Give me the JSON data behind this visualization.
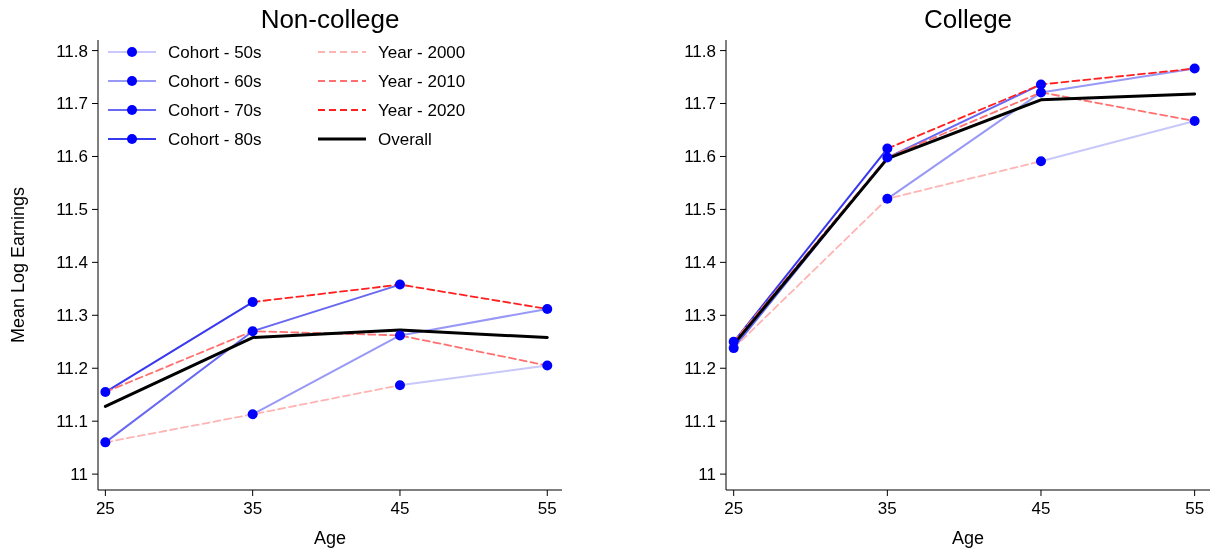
{
  "chart_data": [
    {
      "type": "line",
      "title": "Non-college",
      "xlabel": "Age",
      "ylabel": "Mean Log Earnings",
      "x": [
        25,
        35,
        45,
        55
      ],
      "xlim": [
        24.5,
        56
      ],
      "xticks": [
        25,
        35,
        45,
        55
      ],
      "ylim": [
        10.97,
        11.82
      ],
      "yticks": [
        11,
        11.1,
        11.2,
        11.3,
        11.4,
        11.5,
        11.6,
        11.7,
        11.8
      ],
      "legend": "top left",
      "series": [
        {
          "name": "Cohort - 50s",
          "color": "#c8c8fa",
          "marker": "circle",
          "line_style": "solid",
          "values": [
            null,
            null,
            11.168,
            11.205
          ]
        },
        {
          "name": "Cohort - 60s",
          "color": "#9898f6",
          "marker": "circle",
          "line_style": "solid",
          "values": [
            null,
            11.113,
            11.262,
            11.312
          ]
        },
        {
          "name": "Cohort - 70s",
          "color": "#6868f2",
          "marker": "circle",
          "line_style": "solid",
          "values": [
            11.06,
            11.27,
            11.358,
            null
          ]
        },
        {
          "name": "Cohort - 80s",
          "color": "#3838ee",
          "marker": "circle",
          "line_style": "solid",
          "values": [
            11.155,
            11.325,
            null,
            null
          ]
        },
        {
          "name": "Year - 2000",
          "color": "#ffb4b4",
          "marker": "none",
          "line_style": "dashed",
          "values": [
            11.06,
            11.113,
            11.168,
            null
          ]
        },
        {
          "name": "Year - 2010",
          "color": "#ff7070",
          "marker": "none",
          "line_style": "dashed",
          "values": [
            11.155,
            11.27,
            11.262,
            11.205
          ]
        },
        {
          "name": "Year - 2020",
          "color": "#ff2020",
          "marker": "none",
          "line_style": "dashed",
          "values": [
            null,
            11.325,
            11.358,
            11.312
          ]
        },
        {
          "name": "Overall",
          "color": "#000000",
          "marker": "none",
          "line_style": "solid",
          "values": [
            11.128,
            11.258,
            11.272,
            11.258
          ]
        }
      ]
    },
    {
      "type": "line",
      "title": "College",
      "xlabel": "Age",
      "x": [
        25,
        35,
        45,
        55
      ],
      "xlim": [
        24.5,
        56
      ],
      "xticks": [
        25,
        35,
        45,
        55
      ],
      "ylim": [
        10.97,
        11.82
      ],
      "yticks": [
        11,
        11.1,
        11.2,
        11.3,
        11.4,
        11.5,
        11.6,
        11.7,
        11.8
      ],
      "legend": false,
      "series": [
        {
          "color": "#c8c8fa",
          "marker": "circle",
          "line_style": "solid",
          "values": [
            null,
            null,
            11.591,
            11.667
          ]
        },
        {
          "color": "#9898f6",
          "marker": "circle",
          "line_style": "solid",
          "values": [
            null,
            11.52,
            11.721,
            11.766
          ]
        },
        {
          "color": "#6868f2",
          "marker": "circle",
          "line_style": "solid",
          "values": [
            11.238,
            11.598,
            11.736,
            null
          ]
        },
        {
          "color": "#3838ee",
          "marker": "circle",
          "line_style": "solid",
          "values": [
            11.25,
            11.615,
            null,
            null
          ]
        },
        {
          "color": "#ffb4b4",
          "marker": "none",
          "line_style": "dashed",
          "values": [
            11.238,
            11.52,
            11.591,
            null
          ]
        },
        {
          "color": "#ff7070",
          "marker": "none",
          "line_style": "dashed",
          "values": [
            11.25,
            11.598,
            11.721,
            11.667
          ]
        },
        {
          "color": "#ff2020",
          "marker": "none",
          "line_style": "dashed",
          "values": [
            null,
            11.615,
            11.736,
            11.766
          ]
        },
        {
          "color": "#000000",
          "marker": "none",
          "line_style": "solid",
          "values": [
            11.245,
            11.596,
            11.707,
            11.718
          ]
        }
      ]
    }
  ]
}
